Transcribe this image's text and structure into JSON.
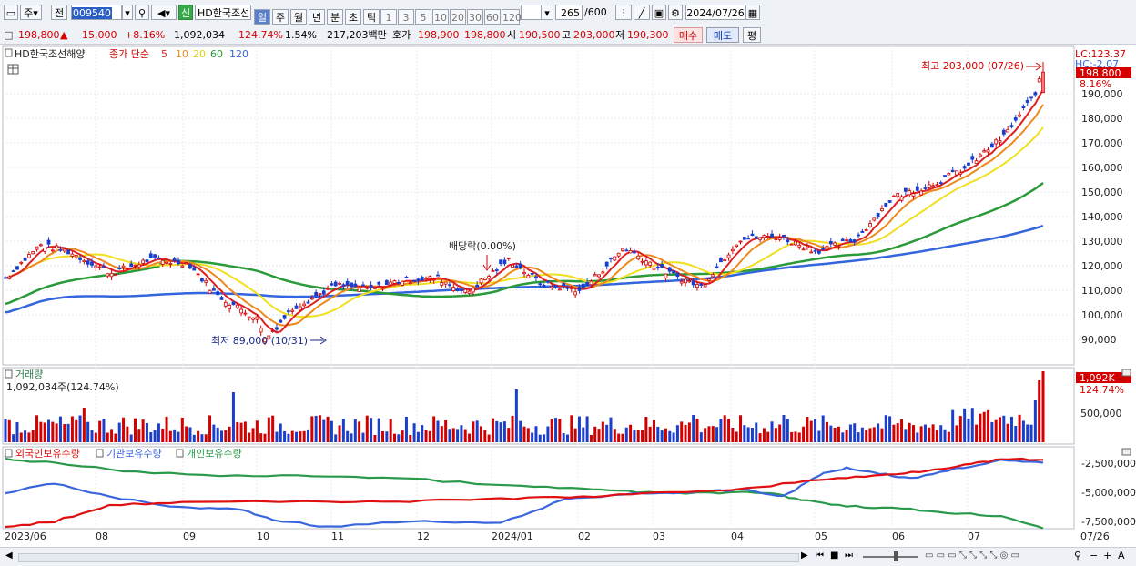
{
  "toolbar": {
    "mode_label": "주",
    "prev_label": "전",
    "code_value": "009540",
    "new_badge": "신",
    "stock_name": "HD한국조선",
    "periods": [
      "일",
      "주",
      "월",
      "년",
      "분",
      "초",
      "틱"
    ],
    "active_period": "일",
    "minute_options": [
      "1",
      "3",
      "5",
      "10",
      "20",
      "30",
      "60",
      "120"
    ],
    "count_label": "265",
    "count_total": "/600",
    "date_value": "2024/07/26"
  },
  "quote": {
    "price": "198,800",
    "change": "15,000",
    "change_pct": "+8.16%",
    "volume": "1,092,034",
    "volume_ratio": "124.74%",
    "turnover_pct": "1.54%",
    "amount": "217,203백만",
    "ask_label": "호가",
    "ask": "198,900",
    "bid": "198,800",
    "open_label": "시",
    "open": "190,500",
    "high_label": "고",
    "high": "203,000",
    "low_label": "저",
    "low": "190,300",
    "buy_button": "매수",
    "sell_button": "매도",
    "avg_button": "평"
  },
  "price_panel": {
    "legend_title": "HD한국조선해양",
    "ma_label": "종가 단순",
    "ma_periods": [
      "5",
      "10",
      "20",
      "60",
      "120"
    ],
    "lc_label": "LC:123.37",
    "hc_label": "HC:-2.07",
    "current_price_tag": "198,800",
    "current_pct_tag": "8.16%",
    "high_annotation": "최고 203,000 (07/26)",
    "low_annotation": "최저 89,000 (10/31)",
    "dividend_annotation": "배당락(0.00%)",
    "y_ticks": [
      "190,000",
      "180,000",
      "170,000",
      "160,000",
      "150,000",
      "140,000",
      "130,000",
      "120,000",
      "110,000",
      "100,000",
      "90,000"
    ],
    "y_values": [
      190000,
      180000,
      170000,
      160000,
      150000,
      140000,
      130000,
      120000,
      110000,
      100000,
      90000
    ]
  },
  "volume_panel": {
    "title": "거래량",
    "value_label": "1,092,034주(124.74%)",
    "tag_value": "1,092K",
    "tag_pct": "124.74%",
    "y_tick": "500,000"
  },
  "holding_panel": {
    "foreign_label": "외국인보유수량",
    "inst_label": "기관보유수량",
    "indiv_label": "개인보유수량",
    "y_ticks": [
      "-2,500,000",
      "-5,000,000",
      "-7,500,000"
    ]
  },
  "x_axis": {
    "labels": [
      "2023/06",
      "08",
      "09",
      "10",
      "11",
      "12",
      "2024/01",
      "02",
      "03",
      "04",
      "05",
      "06",
      "07",
      "07/26"
    ]
  },
  "colors": {
    "up": "#d40000",
    "down": "#1a3fcc",
    "ma5": "#e02020",
    "ma10": "#ee8a1c",
    "ma20": "#f0e020",
    "ma60": "#2a9a3a",
    "ma120": "#3366dd",
    "foreign": "#e01010",
    "inst": "#3a66dd",
    "indiv": "#2a9a4a"
  }
}
